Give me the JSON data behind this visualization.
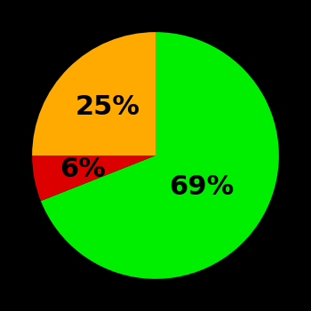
{
  "slices": [
    69,
    6,
    25
  ],
  "labels": [
    "69%",
    "6%",
    "25%"
  ],
  "colors": [
    "#00ee00",
    "#dd0000",
    "#ffaa00"
  ],
  "background_color": "#000000",
  "startangle": 90,
  "label_radii": [
    0.45,
    0.6,
    0.55
  ],
  "label_fontsize": 22,
  "label_fontweight": "bold"
}
